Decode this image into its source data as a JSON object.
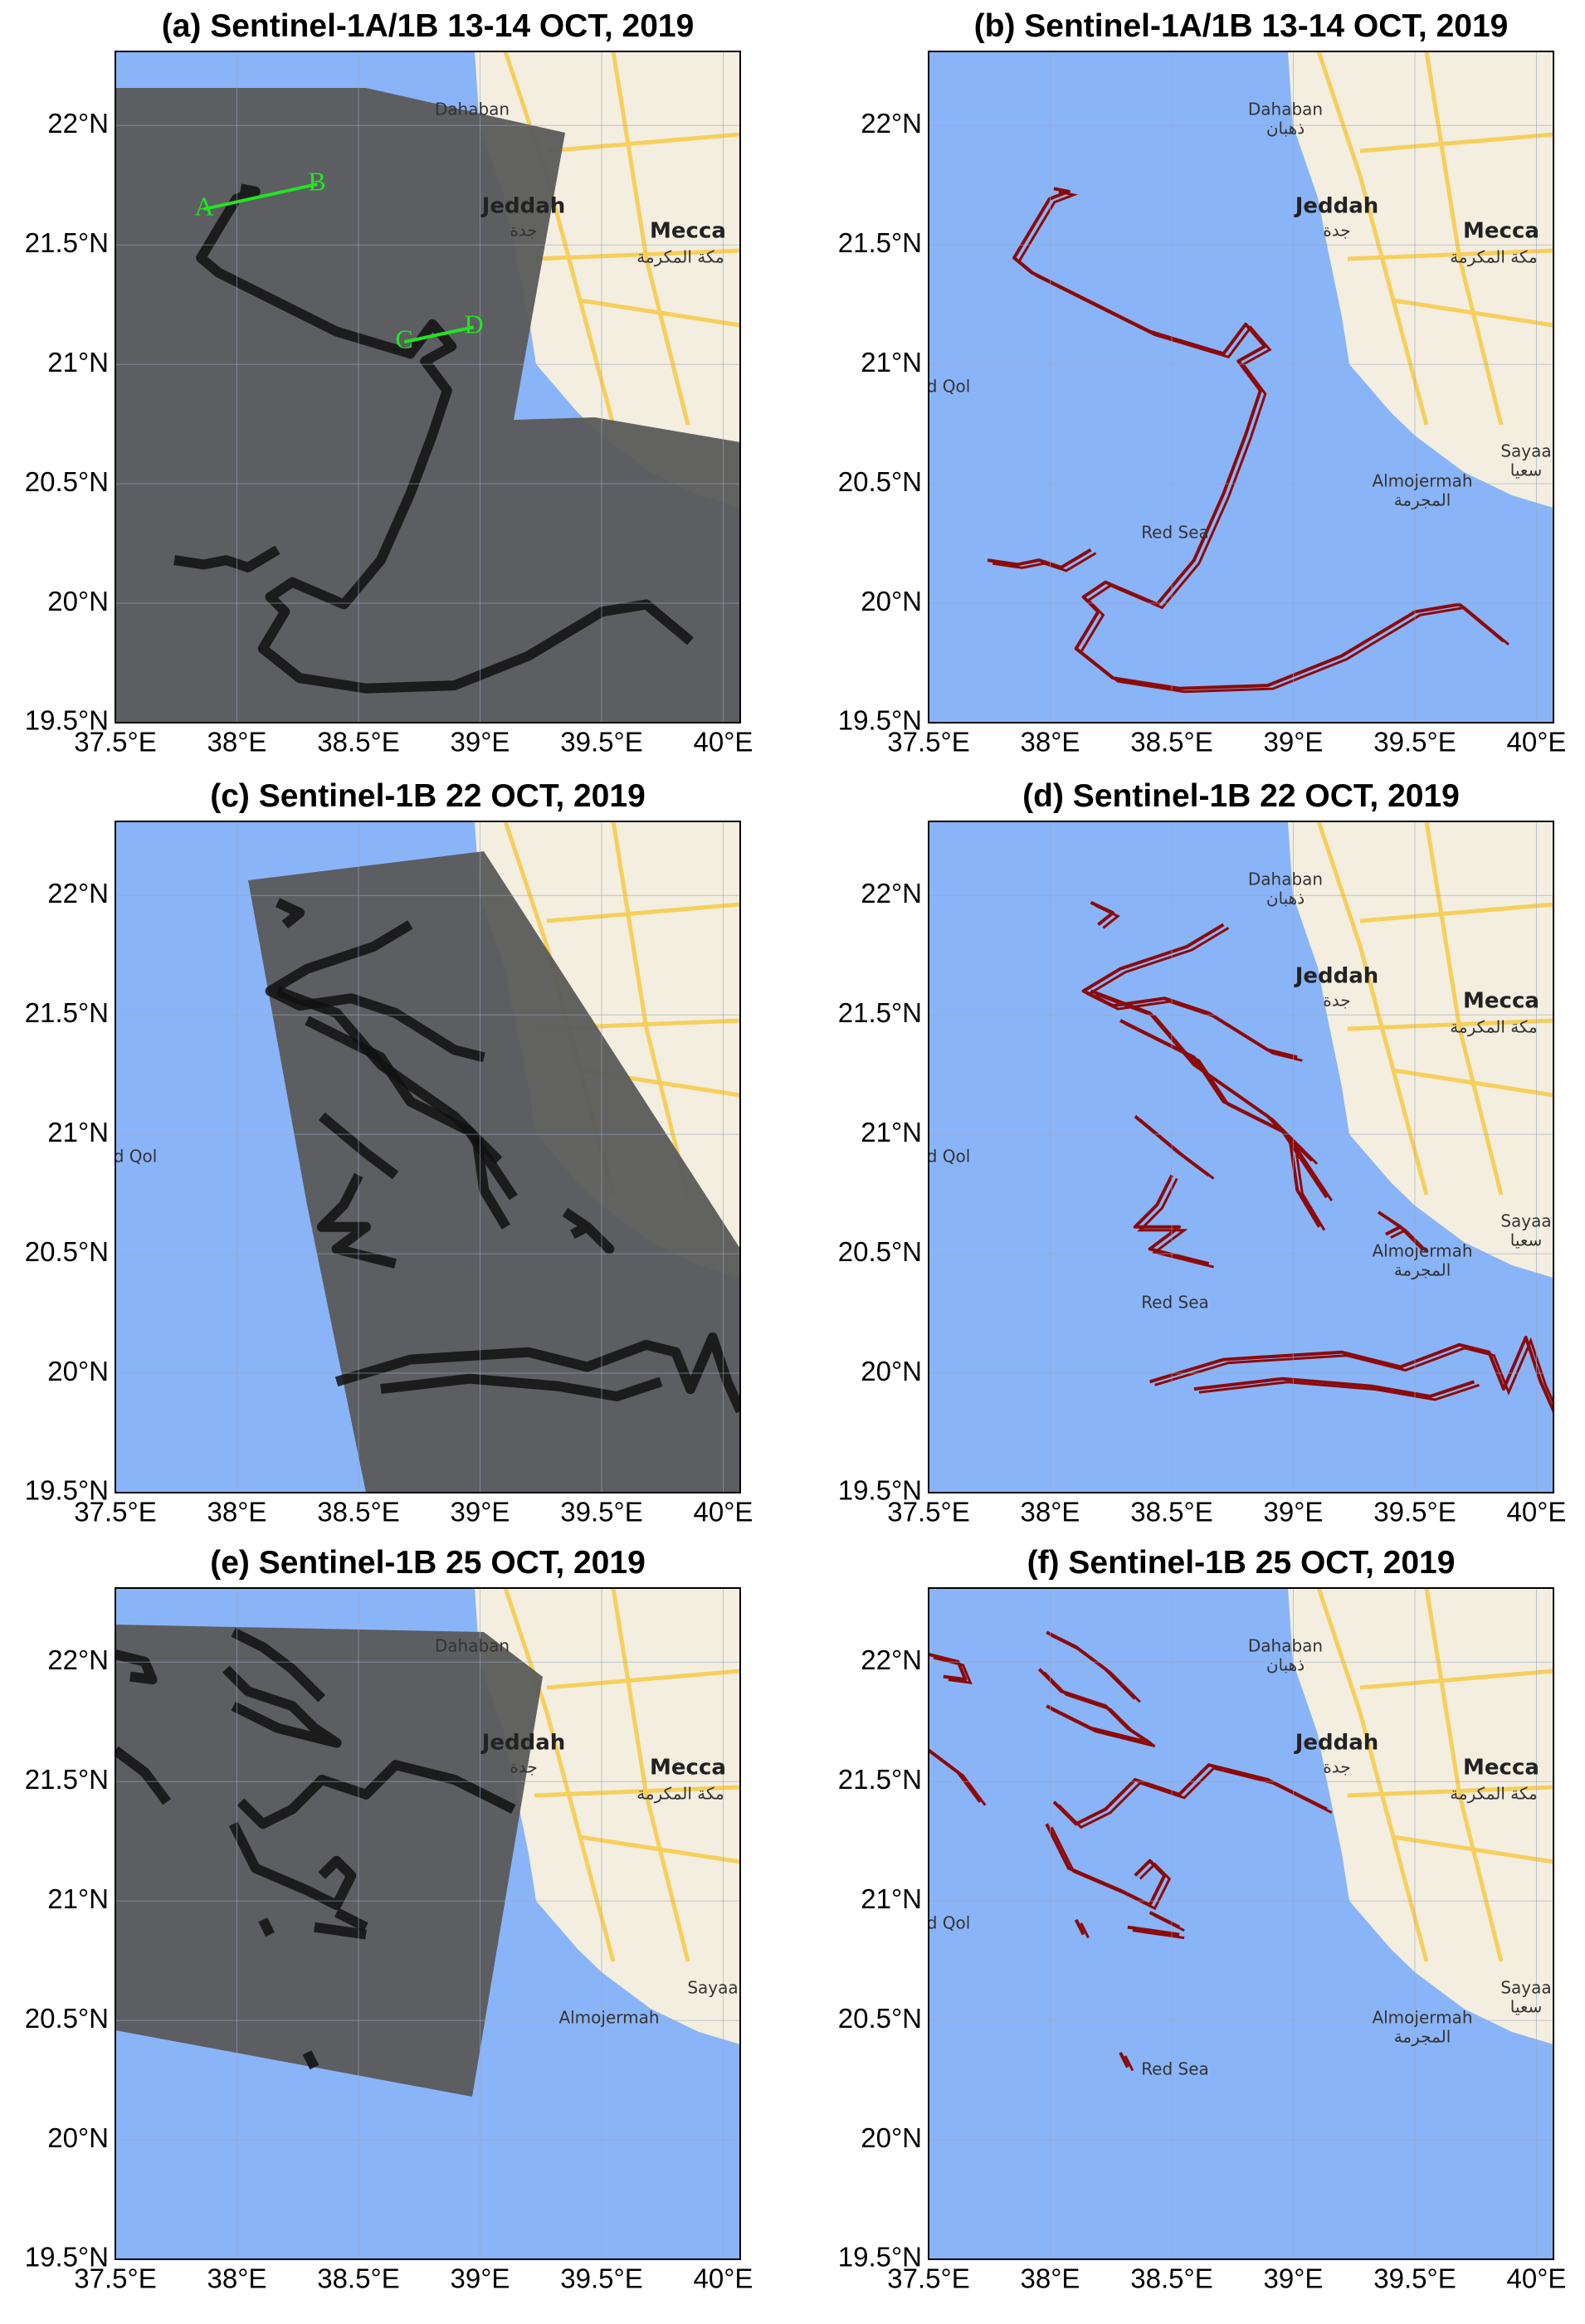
{
  "axes": {
    "xlim": [
      37.5,
      40.07
    ],
    "ylim": [
      19.5,
      22.31
    ],
    "xticks": [
      {
        "value": 37.5,
        "label": "37.5°E"
      },
      {
        "value": 38,
        "label": "38°E"
      },
      {
        "value": 38.5,
        "label": "38.5°E"
      },
      {
        "value": 39,
        "label": "39°E"
      },
      {
        "value": 39.5,
        "label": "39.5°E"
      },
      {
        "value": 40,
        "label": "40°E"
      }
    ],
    "yticks": [
      {
        "value": 19.5,
        "label": "19.5°N"
      },
      {
        "value": 20,
        "label": "20°N"
      },
      {
        "value": 20.5,
        "label": "20.5°N"
      },
      {
        "value": 21,
        "label": "21°N"
      },
      {
        "value": 21.5,
        "label": "21.5°N"
      },
      {
        "value": 22,
        "label": "22°N"
      }
    ]
  },
  "panels": [
    {
      "title": "(a) Sentinel-1A/1B 13-14 OCT, 2019",
      "kind": "sar",
      "labels": [
        "Dahaban",
        "Jeddah",
        "جدة",
        "Mecca",
        "مكة المكرمة",
        "A",
        "B",
        "C",
        "D"
      ]
    },
    {
      "title": "(b) Sentinel-1A/1B 13-14 OCT, 2019",
      "kind": "outline",
      "labels": [
        "Dahaban",
        "ذهبان",
        "Jeddah",
        "جدة",
        "Mecca",
        "مكة المكرمة",
        "d Qol",
        "Red Sea",
        "Almojermah",
        "المجرمة",
        "Sayaa",
        "سعيا"
      ]
    },
    {
      "title": "(c) Sentinel-1B 22 OCT, 2019",
      "kind": "sar",
      "labels": [
        "d Qol"
      ]
    },
    {
      "title": "(d) Sentinel-1B 22 OCT, 2019",
      "kind": "outline",
      "labels": [
        "Dahaban",
        "ذهبان",
        "Jeddah",
        "جدة",
        "Mecca",
        "مكة المكرمة",
        "d Qol",
        "Red Sea",
        "Almojermah",
        "المجرمة",
        "Sayaa",
        "سعيا"
      ]
    },
    {
      "title": "(e) Sentinel-1B 25 OCT, 2019",
      "kind": "sar",
      "labels": [
        "Dahaban",
        "Jeddah",
        "جدة",
        "Mecca",
        "مكة المكرمة",
        "Almojermah",
        "Sayaa"
      ]
    },
    {
      "title": "(f) Sentinel-1B 25 OCT, 2019",
      "kind": "outline",
      "labels": [
        "Dahaban",
        "ذهبان",
        "Jeddah",
        "جدة",
        "Mecca",
        "مكة المكرمة",
        "d Qol",
        "Red Sea",
        "Almojermah",
        "المجرمة",
        "Sayaa",
        "سعيا"
      ]
    }
  ]
}
